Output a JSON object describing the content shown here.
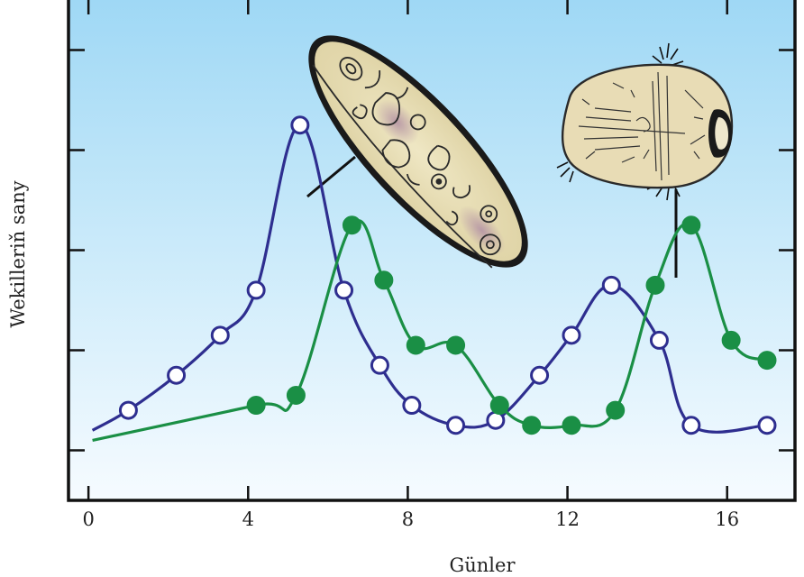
{
  "chart_data": {
    "type": "line",
    "title": "",
    "xlabel": "Günler",
    "ylabel": "Wekilleriň sany",
    "xlim": [
      -0.5,
      17.7
    ],
    "ylim": [
      0,
      100
    ],
    "x_ticks": [
      0,
      4,
      8,
      12,
      16
    ],
    "x_tick_labels": [
      "0",
      "4",
      "8",
      "12",
      "16"
    ],
    "y_tick_count": 5,
    "grid": false,
    "legend": "none",
    "series": [
      {
        "color": "#2e2e8f",
        "marker": "open-circle",
        "line_start": [
          0.1,
          14
        ],
        "points": [
          [
            1,
            18
          ],
          [
            2.2,
            25
          ],
          [
            3.3,
            33
          ],
          [
            4.2,
            42
          ],
          [
            5.3,
            75
          ],
          [
            6.4,
            42
          ],
          [
            7.3,
            27
          ],
          [
            8.1,
            19
          ],
          [
            9.2,
            15
          ],
          [
            10.2,
            16
          ],
          [
            11.3,
            25
          ],
          [
            12.1,
            33
          ],
          [
            13.1,
            43
          ],
          [
            14.3,
            32
          ],
          [
            15.1,
            15
          ],
          [
            17,
            15
          ]
        ]
      },
      {
        "color": "#1a8f45",
        "marker": "filled-circle",
        "line_start": [
          0.1,
          12
        ],
        "points": [
          [
            4.2,
            19
          ],
          [
            5.2,
            21
          ],
          [
            6.6,
            55
          ],
          [
            7.4,
            44
          ],
          [
            8.2,
            31
          ],
          [
            9.2,
            31
          ],
          [
            10.3,
            19
          ],
          [
            11.1,
            15
          ],
          [
            12.1,
            15
          ],
          [
            13.2,
            18
          ],
          [
            14.2,
            43
          ],
          [
            15.1,
            55
          ],
          [
            16.1,
            32
          ],
          [
            17,
            28
          ]
        ]
      }
    ]
  }
}
